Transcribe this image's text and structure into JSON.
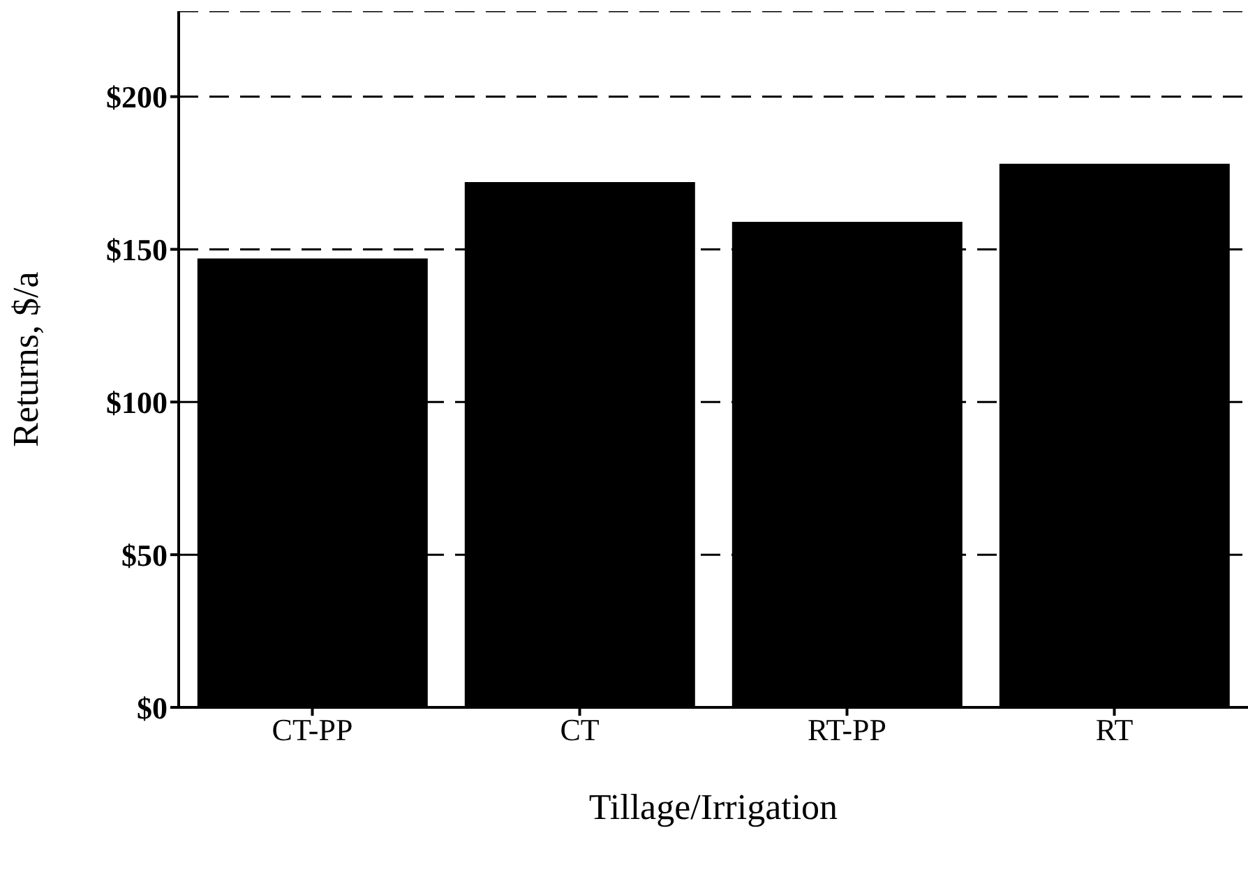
{
  "chart_data": {
    "type": "bar",
    "xlabel": "Tillage/Irrigation",
    "ylabel": "Returns, $/a",
    "categories": [
      "CT-PP",
      "CT",
      "RT-PP",
      "RT"
    ],
    "values": [
      147,
      172,
      159,
      178
    ],
    "color": "#000000",
    "ylim": [
      0,
      228
    ],
    "yticks": [
      {
        "value": 0,
        "label": "$0"
      },
      {
        "value": 50,
        "label": "$50"
      },
      {
        "value": 100,
        "label": "$100"
      },
      {
        "value": 150,
        "label": "$150"
      },
      {
        "value": 200,
        "label": "$200"
      }
    ],
    "grid": "y",
    "legend": false
  }
}
